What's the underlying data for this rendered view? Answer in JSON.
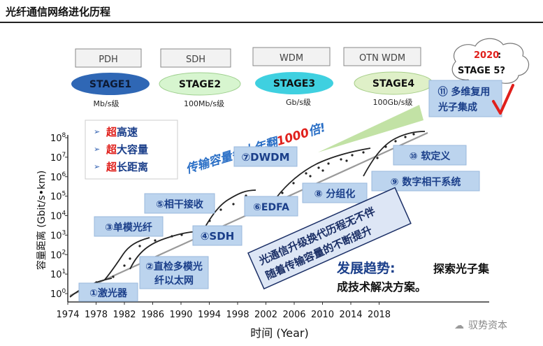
{
  "page": {
    "title": "光纤通信网络进化历程"
  },
  "stages": [
    {
      "tech": "PDH",
      "label": "STAGE1",
      "unit": "Mb/s级",
      "color": "#2f67b5",
      "text_color": "#0d1a33"
    },
    {
      "tech": "SDH",
      "label": "STAGE2",
      "unit": "100Mb/s级",
      "color": "#d7f5cf",
      "text_color": "#111111"
    },
    {
      "tech": "WDM",
      "label": "STAGE3",
      "unit": "Gb/s级",
      "color": "#3fd0e0",
      "text_color": "#111111"
    },
    {
      "tech": "OTN WDM",
      "label": "STAGE4",
      "unit": "100Gb/s级",
      "color": "#dff0c8",
      "text_color": "#111111"
    }
  ],
  "stage5": {
    "year": "2020",
    "colon": ":",
    "label": "STAGE 5?"
  },
  "features": {
    "items": [
      {
        "prefix": "超",
        "rest": "高速"
      },
      {
        "prefix": "超",
        "rest": "大容量"
      },
      {
        "prefix": "超",
        "rest": "长距离"
      }
    ],
    "colors": {
      "prefix": "#e0201c",
      "text": "#1b3f8a",
      "arrow": "#2f5fb0"
    }
  },
  "trend_banner": {
    "prefix": "传输容量每十年翻",
    "number": "1000",
    "suffix": "倍!"
  },
  "milestones": [
    {
      "text": "①激光器"
    },
    {
      "text": "②直检多模光"
    },
    {
      "text": "纤以太网"
    },
    {
      "text": "③单模光纤"
    },
    {
      "text": "④SDH"
    },
    {
      "text": "⑤相干接收"
    },
    {
      "text": "⑥EDFA"
    },
    {
      "text": "⑦DWDM"
    },
    {
      "text": "⑧ 分组化"
    },
    {
      "text": "⑨ 数字相干系统"
    },
    {
      "text": "⑩ 软定义"
    },
    {
      "text": "⑪ 多维复用"
    },
    {
      "text": "光子集成"
    }
  ],
  "callout": {
    "line1": "光通信升级换代历程无不伴",
    "line2": "随着传输容量的不断提升"
  },
  "development": {
    "title": "发展趋势:",
    "line1": "探索光子集",
    "line2": "成技术解决方案。"
  },
  "axes": {
    "ylabel": "容量距离 (Gbit/s•km)",
    "xlabel": "时间 (Year)",
    "y_ticks": [
      {
        "base": "10",
        "exp": "0"
      },
      {
        "base": "10",
        "exp": "1"
      },
      {
        "base": "10",
        "exp": "2"
      },
      {
        "base": "10",
        "exp": "3"
      },
      {
        "base": "10",
        "exp": "4"
      },
      {
        "base": "10",
        "exp": "5"
      },
      {
        "base": "10",
        "exp": "6"
      },
      {
        "base": "10",
        "exp": "7"
      },
      {
        "base": "10",
        "exp": "8"
      }
    ],
    "x_ticks": [
      "1974",
      "1978",
      "1982",
      "1986",
      "1990",
      "1994",
      "1998",
      "2002",
      "2006",
      "2010",
      "2014",
      "2018"
    ]
  },
  "watermark": "驭势资本",
  "colors": {
    "box_fill": "#bcd4ee",
    "box_text": "#1b3f8a",
    "trend_text": "#2a6fc6",
    "trend_number": "#e0201c",
    "check": "#e0201c",
    "wedge": "#bfe0a0",
    "callout_fill": "#dde6f5",
    "development_title": "#1b3f8a"
  }
}
